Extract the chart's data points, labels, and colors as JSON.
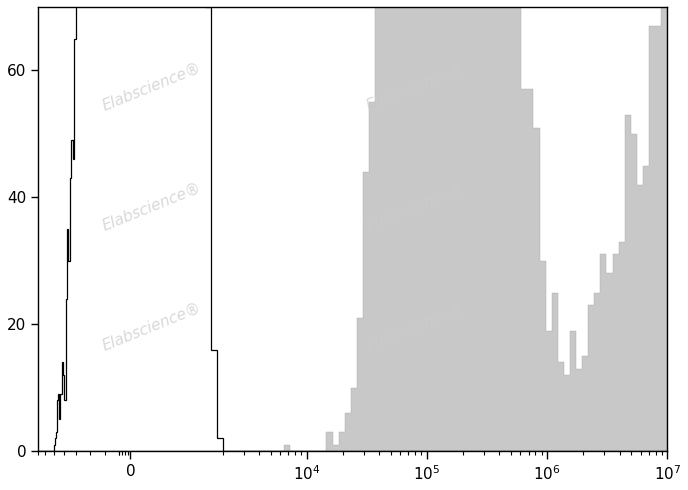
{
  "title": "",
  "ylabel": "",
  "xlabel": "",
  "ylim": [
    0,
    70
  ],
  "background_color": "#ffffff",
  "watermark_text": "Elabscience®",
  "watermark_color": "#cccccc",
  "black_hist_color": "#000000",
  "gray_hist_facecolor": "#c8c8c8",
  "gray_hist_edgecolor": "#aaaaaa",
  "symlog_linthresh": 1000,
  "symlog_linscale": 0.42,
  "xmin": -2000,
  "xmax": 10000000.0,
  "yticks": [
    0,
    20,
    40,
    60
  ],
  "major_xticks": [
    0,
    10000,
    100000,
    1000000,
    10000000
  ]
}
